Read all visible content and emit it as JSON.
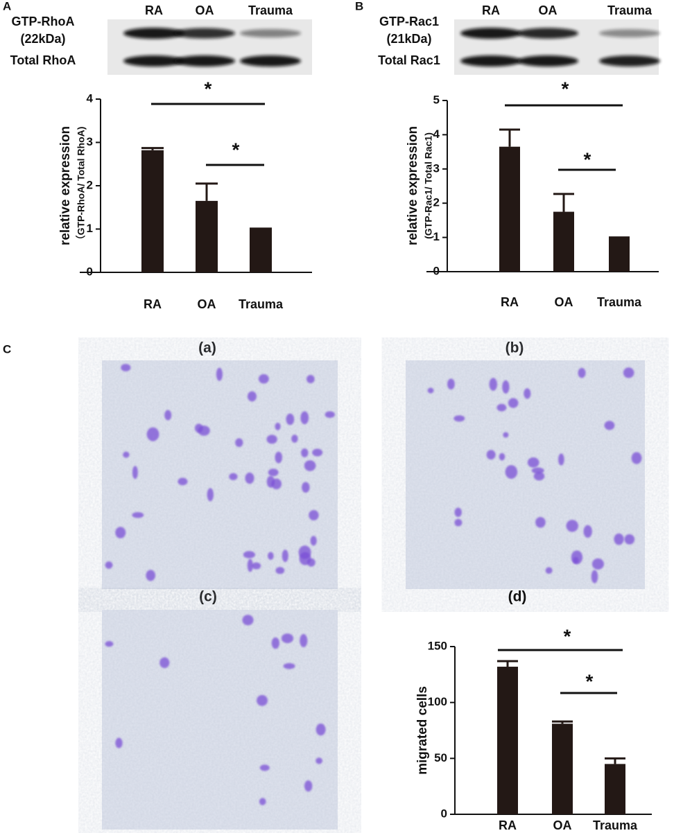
{
  "panel_labels": [
    "A",
    "B",
    "C"
  ],
  "blots": [
    {
      "lanes": [
        "RA",
        "OA",
        "Trauma"
      ],
      "rows": [
        "GTP-RhoA",
        "(22kDa)",
        "Total RhoA"
      ]
    },
    {
      "lanes": [
        "RA",
        "OA",
        "Trauma"
      ],
      "rows": [
        "GTP-Rac1",
        "(21kDa)",
        "Total Rac1"
      ]
    }
  ],
  "images": [
    "(a)",
    "(b)",
    "(c)"
  ],
  "chart_data": [
    {
      "type": "bar",
      "categories": [
        "RA",
        "OA",
        "Trauma"
      ],
      "values": [
        2.82,
        1.65,
        1.0
      ],
      "errors": [
        0.05,
        0.4,
        0.01
      ],
      "color": "#231815",
      "ylim": [
        0,
        4
      ],
      "yticks": [
        0,
        1,
        2,
        3,
        4
      ],
      "ylabel": "relative expression",
      "ylabel_sub": "（GTP-RhoA/ Total RhoA)",
      "annotations": [
        "*",
        "*"
      ]
    },
    {
      "type": "bar",
      "categories": [
        "RA",
        "OA",
        "Trauma"
      ],
      "values": [
        3.65,
        1.75,
        0.98
      ],
      "errors": [
        0.5,
        0.52,
        0.02
      ],
      "color": "#231815",
      "ylim": [
        0,
        5
      ],
      "yticks": [
        0,
        1,
        2,
        3,
        4,
        5
      ],
      "ylabel": "relative expression",
      "ylabel_sub": "(GTP-Rac1/ Total Rac1)",
      "annotations": [
        "*",
        "*"
      ]
    },
    {
      "type": "bar",
      "title": "(d)",
      "categories": [
        "RA",
        "OA",
        "Trauma"
      ],
      "values": [
        132,
        81,
        45
      ],
      "errors": [
        5,
        2,
        5
      ],
      "color": "#231815",
      "ylim": [
        0,
        150
      ],
      "yticks": [
        0,
        50,
        100,
        150
      ],
      "ylabel": "migrated cells",
      "annotations": [
        "*",
        "*"
      ]
    }
  ]
}
